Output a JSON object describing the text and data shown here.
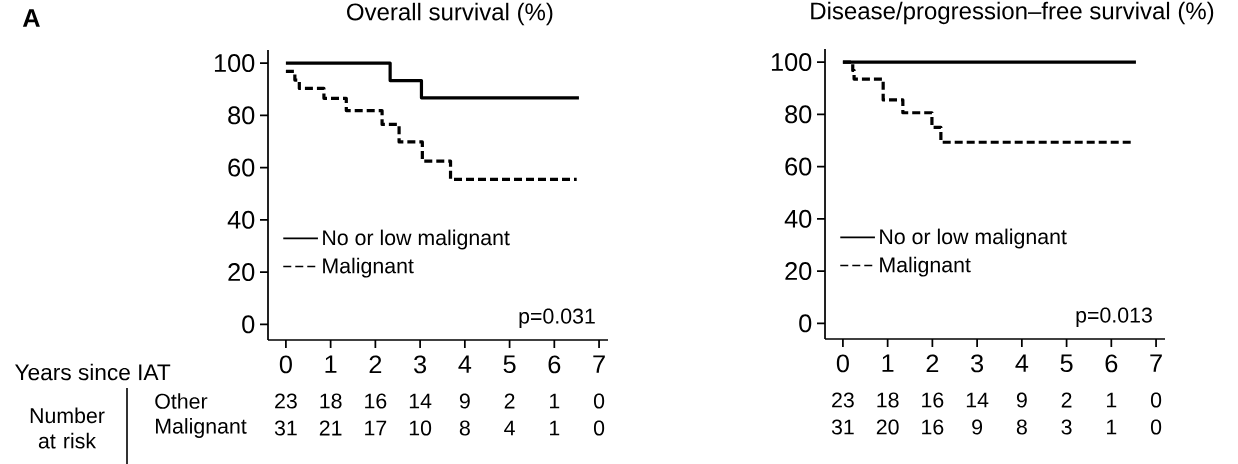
{
  "chart_data": [
    {
      "type": "step",
      "title": "Overall survival (%)",
      "xlabel": "Years since IAT",
      "series": [
        {
          "name": "No or low malignant",
          "color": "#000000",
          "line_style": "solid",
          "x": [
            0,
            2.33,
            3.03,
            6.55
          ],
          "values": [
            100,
            93.3,
            86.7,
            86.7
          ]
        },
        {
          "name": "Malignant",
          "color": "#000000",
          "line_style": "dashed",
          "x": [
            0,
            0.2,
            0.3,
            0.85,
            1.35,
            2.15,
            2.53,
            3.05,
            3.68,
            6.5
          ],
          "values": [
            96.8,
            93.5,
            90.3,
            86.5,
            81.8,
            76.5,
            69.8,
            62.5,
            55.5,
            55.5
          ]
        }
      ],
      "xlim": [
        -0.4,
        7.2
      ],
      "xticks": [
        0,
        1,
        2,
        3,
        4,
        5,
        6,
        7
      ],
      "ylim": [
        -6,
        105
      ],
      "yticks": [
        0,
        20,
        40,
        60,
        80,
        100
      ],
      "legend": "bottom left",
      "annotations": [
        "p=0.031",
        "23",
        "18",
        "16",
        "14",
        "9",
        "2",
        "1",
        "0",
        "31",
        "21",
        "17",
        "10",
        "8",
        "4",
        "1",
        "0",
        "A",
        "Number at risk",
        "Other",
        "Malignant"
      ]
    },
    {
      "type": "step",
      "title": "Disease/progression–free survival (%)",
      "series": [
        {
          "name": "No or low malignant",
          "color": "#000000",
          "line_style": "solid",
          "x": [
            0,
            6.55
          ],
          "values": [
            100,
            100
          ]
        },
        {
          "name": "Malignant",
          "color": "#000000",
          "line_style": "dashed",
          "x": [
            0,
            0.22,
            0.25,
            0.9,
            1.34,
            1.99,
            2.19,
            6.5
          ],
          "values": [
            100,
            96.8,
            93.5,
            85.5,
            80.6,
            75,
            69.3,
            69.3
          ]
        }
      ],
      "xlim": [
        -0.4,
        7.2
      ],
      "xticks": [
        0,
        1,
        2,
        3,
        4,
        5,
        6,
        7
      ],
      "ylim": [
        -6,
        105
      ],
      "yticks": [
        0,
        20,
        40,
        60,
        80,
        100
      ],
      "legend": "bottom left",
      "annotations": [
        "p=0.013",
        "23",
        "18",
        "16",
        "14",
        "9",
        "2",
        "1",
        "0",
        "31",
        "20",
        "16",
        "9",
        "8",
        "3",
        "1",
        "0"
      ]
    }
  ]
}
